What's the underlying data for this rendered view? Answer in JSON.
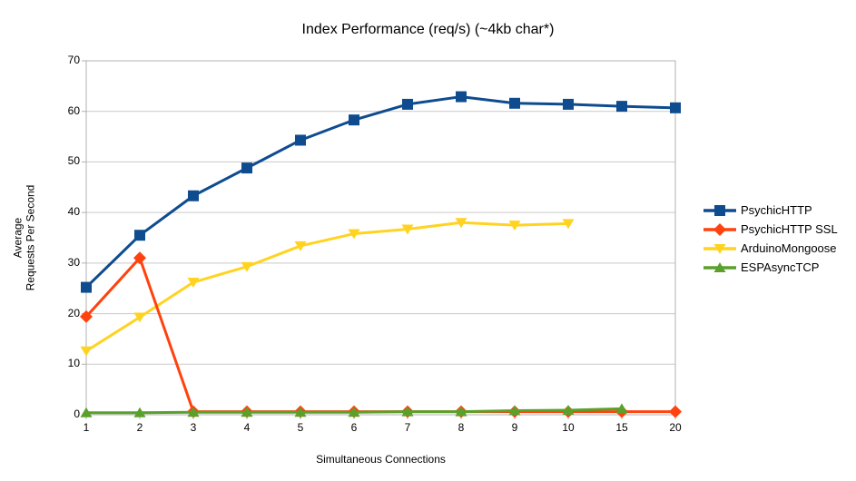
{
  "chart_data": {
    "type": "line",
    "title": "Index Performance (req/s) (~4kb char*)",
    "xlabel": "Simultaneous Connections",
    "ylabel": "Average Requests Per Second",
    "ylabel_lines": [
      "Average",
      "Requests Per Second"
    ],
    "categories": [
      "1",
      "2",
      "3",
      "4",
      "5",
      "6",
      "7",
      "8",
      "9",
      "10",
      "15",
      "20"
    ],
    "ylim": [
      0,
      70
    ],
    "y_tick_step": 10,
    "y_tick_labels": [
      "0",
      "10",
      "20",
      "30",
      "40",
      "50",
      "60",
      "70"
    ],
    "grid": "horizontal",
    "legend_position": "right",
    "series": [
      {
        "name": "PsychicHTTP",
        "color": "#0E4C8F",
        "marker": "square",
        "values": [
          25.2,
          35.5,
          43.3,
          48.8,
          54.3,
          58.3,
          61.4,
          62.9,
          61.6,
          61.4,
          61.0,
          60.7
        ]
      },
      {
        "name": "PsychicHTTP SSL",
        "color": "#FF420E",
        "marker": "diamond",
        "values": [
          19.4,
          31.0,
          0.6,
          0.6,
          0.6,
          0.6,
          0.6,
          0.6,
          0.6,
          0.6,
          0.6,
          0.6
        ]
      },
      {
        "name": "ArduinoMongoose",
        "color": "#FFD320",
        "marker": "triangle-down",
        "values": [
          12.6,
          19.3,
          26.2,
          29.3,
          33.4,
          35.8,
          36.7,
          38.0,
          37.5,
          37.8,
          null,
          null
        ]
      },
      {
        "name": "ESPAsyncTCP",
        "color": "#5AA12B",
        "marker": "triangle-up",
        "values": [
          0.4,
          0.4,
          0.5,
          0.5,
          0.5,
          0.5,
          0.6,
          0.6,
          0.8,
          0.9,
          1.2,
          null
        ]
      }
    ],
    "colors": {
      "background": "#FFFFFF",
      "text": "#000000",
      "grid": "#C9C9C9",
      "plot_border": "#B0B0B0"
    }
  }
}
